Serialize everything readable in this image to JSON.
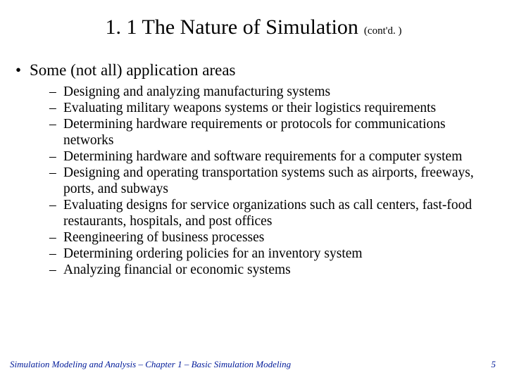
{
  "colors": {
    "background": "#ffffff",
    "text": "#000000",
    "footer": "#001a99"
  },
  "typography": {
    "family": "Times New Roman",
    "title_fontsize": 30,
    "suffix_fontsize": 15,
    "level1_fontsize": 23,
    "level2_fontsize": 19.5,
    "footer_fontsize": 13
  },
  "title": {
    "main": "1. 1  The Nature of Simulation",
    "suffix": "(cont'd. )"
  },
  "bullet": {
    "heading": "Some (not all) application areas",
    "items": [
      "Designing and analyzing manufacturing systems",
      "Evaluating military weapons systems or their logistics requirements",
      "Determining hardware requirements or protocols for communications networks",
      "Determining hardware and software requirements for a computer system",
      "Designing and operating transportation systems such as airports, freeways, ports, and subways",
      "Evaluating designs for service organizations such as call centers, fast-food restaurants, hospitals, and post offices",
      "Reengineering of business processes",
      "Determining ordering policies for an inventory system",
      "Analyzing financial or economic systems"
    ]
  },
  "footer": {
    "text": "Simulation Modeling and Analysis – Chapter 1 –  Basic Simulation Modeling",
    "page": "5"
  }
}
